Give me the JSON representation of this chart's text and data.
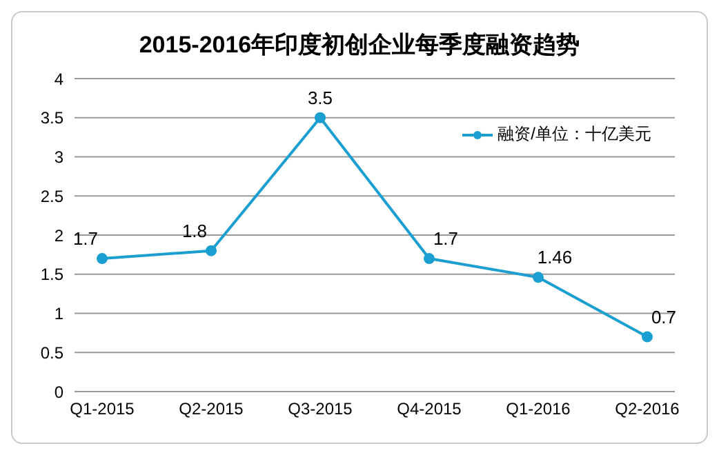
{
  "chart_data": {
    "type": "line",
    "title": "2015-2016年印度初创企业每季度融资趋势",
    "categories": [
      "Q1-2015",
      "Q2-2015",
      "Q3-2015",
      "Q4-2015",
      "Q1-2016",
      "Q2-2016"
    ],
    "series": [
      {
        "name": "融资/单位：十亿美元",
        "color": "#1a9fd0",
        "values": [
          1.7,
          1.8,
          3.5,
          1.7,
          1.46,
          0.7
        ]
      }
    ],
    "ylim": [
      0,
      4
    ],
    "yticks": [
      0,
      0.5,
      1,
      1.5,
      2,
      2.5,
      3,
      3.5,
      4
    ],
    "grid": "y",
    "legend": "top right",
    "marker": "circle",
    "line_style": "solid",
    "data_labels": true
  }
}
